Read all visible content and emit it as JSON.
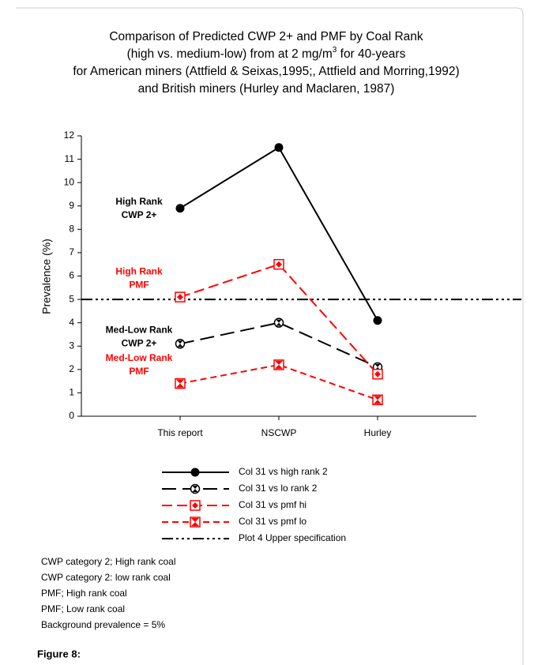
{
  "chart_data": {
    "type": "line",
    "title_lines": [
      "Comparison of Predicted CWP 2+ and PMF by Coal Rank",
      "(high vs. medium-low) from at 2 mg/m",
      "3",
      " for 40-years",
      "for American miners (Attfield & Seixas,1995;, Attfield and Morring,1992)",
      "and British miners (Hurley and Maclaren, 1987)"
    ],
    "y_label": "Prevalence (%)",
    "categories": [
      "This report",
      "NSCWP",
      "Hurley"
    ],
    "ylim": [
      0,
      12
    ],
    "yticks": [
      0,
      1,
      2,
      3,
      4,
      5,
      6,
      7,
      8,
      9,
      10,
      11,
      12
    ],
    "series": [
      {
        "name": "Col 31 vs high rank 2",
        "color": "#000000",
        "dash": "none",
        "marker": "circle",
        "values": [
          8.9,
          11.5,
          4.1
        ]
      },
      {
        "name": "Col 31 vs lo rank 2",
        "color": "#000000",
        "dash": "18,8",
        "marker": "circle-hourglass",
        "values": [
          3.1,
          4.0,
          2.1
        ]
      },
      {
        "name": "Col 31 vs pmf hi",
        "color": "#ff0000",
        "dash": "13,6",
        "marker": "square-diamond",
        "values": [
          5.1,
          6.5,
          1.8
        ]
      },
      {
        "name": "Col 31 vs pmf lo",
        "color": "#ff0000",
        "dash": "8,5",
        "marker": "square-hourglass",
        "values": [
          1.4,
          2.2,
          0.7
        ]
      }
    ],
    "reference_line": {
      "name": "Plot 4 Upper specification",
      "value": 5,
      "color": "#000000",
      "dash": "14,4,3,4,3,4,3,4"
    },
    "annotations": [
      {
        "lines": [
          "High Rank",
          "CWP 2+"
        ],
        "color": "#000000",
        "y": 8.9
      },
      {
        "lines": [
          "High Rank",
          "PMF"
        ],
        "color": "#ff0000",
        "y": 5.9
      },
      {
        "lines": [
          "Med-Low Rank",
          "CWP 2+"
        ],
        "color": "#000000",
        "y": 3.4
      },
      {
        "lines": [
          "Med-Low Rank",
          "PMF"
        ],
        "color": "#ff0000",
        "y": 2.2
      }
    ],
    "notes": [
      "CWP category 2; High rank coal",
      "CWP category 2: low rank coal",
      "PMF; High rank coal",
      "PMF; Low rank coal",
      "Background prevalence = 5%"
    ],
    "caption": "Figure 8:"
  }
}
